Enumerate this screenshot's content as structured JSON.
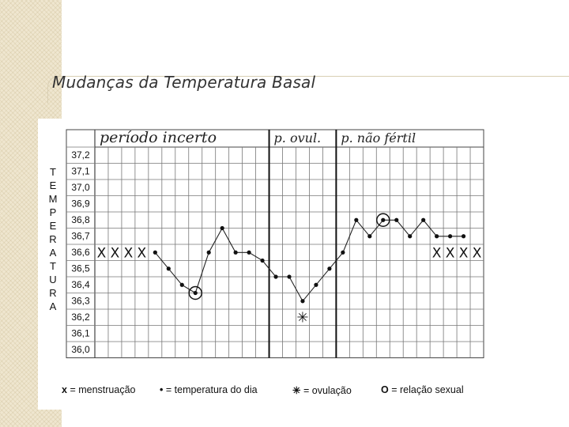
{
  "slide": {
    "title": "Mudanças da Temperatura Basal"
  },
  "chart_data": {
    "type": "line",
    "title": "",
    "ylabel": "TEMPERATURA",
    "ylabel_letters": [
      "T",
      "E",
      "M",
      "P",
      "E",
      "R",
      "A",
      "T",
      "U",
      "R",
      "A"
    ],
    "y_ticks": [
      "37,2",
      "37,1",
      "37,0",
      "36,9",
      "36,8",
      "36,7",
      "36,6",
      "36,5",
      "36,4",
      "36,3",
      "36,2",
      "36,1",
      "36,0"
    ],
    "ylim": [
      36.0,
      37.2
    ],
    "phase_labels": [
      "período incerto",
      "p. ovul.",
      "p. não fértil"
    ],
    "day_count": 29,
    "series": [
      {
        "points": [
          {
            "day": 5,
            "temp": 36.6
          },
          {
            "day": 6,
            "temp": 36.5
          },
          {
            "day": 7,
            "temp": 36.4
          },
          {
            "day": 8,
            "temp": 36.35
          },
          {
            "day": 9,
            "temp": 36.6
          },
          {
            "day": 10,
            "temp": 36.75
          },
          {
            "day": 11,
            "temp": 36.6
          },
          {
            "day": 12,
            "temp": 36.6
          },
          {
            "day": 13,
            "temp": 36.55
          },
          {
            "day": 14,
            "temp": 36.45
          },
          {
            "day": 15,
            "temp": 36.45
          },
          {
            "day": 16,
            "temp": 36.3
          },
          {
            "day": 17,
            "temp": 36.4
          },
          {
            "day": 18,
            "temp": 36.5
          },
          {
            "day": 19,
            "temp": 36.6
          },
          {
            "day": 20,
            "temp": 36.8
          },
          {
            "day": 21,
            "temp": 36.7
          },
          {
            "day": 22,
            "temp": 36.8
          },
          {
            "day": 23,
            "temp": 36.8
          },
          {
            "day": 24,
            "temp": 36.7
          },
          {
            "day": 25,
            "temp": 36.8
          },
          {
            "day": 26,
            "temp": 36.7
          },
          {
            "day": 27,
            "temp": 36.7
          },
          {
            "day": 28,
            "temp": 36.7
          }
        ]
      }
    ],
    "menstruation_days": [
      1,
      2,
      3,
      4,
      26,
      27,
      28,
      29
    ],
    "menstruation_temp": 36.6,
    "ovulation_day": 16,
    "ovulation_temp": 36.2,
    "intercourse_points": [
      {
        "day": 8,
        "temp": 36.35
      },
      {
        "day": 22,
        "temp": 36.8
      }
    ],
    "phase_dividers_after_day": [
      13,
      18
    ],
    "legend": [
      {
        "symbol": "x",
        "text": "= menstruação"
      },
      {
        "symbol": "•",
        "text": "= temperatura do dia"
      },
      {
        "symbol": "✳",
        "text": "= ovulação"
      },
      {
        "symbol": "O",
        "text": "= relação sexual"
      }
    ]
  }
}
